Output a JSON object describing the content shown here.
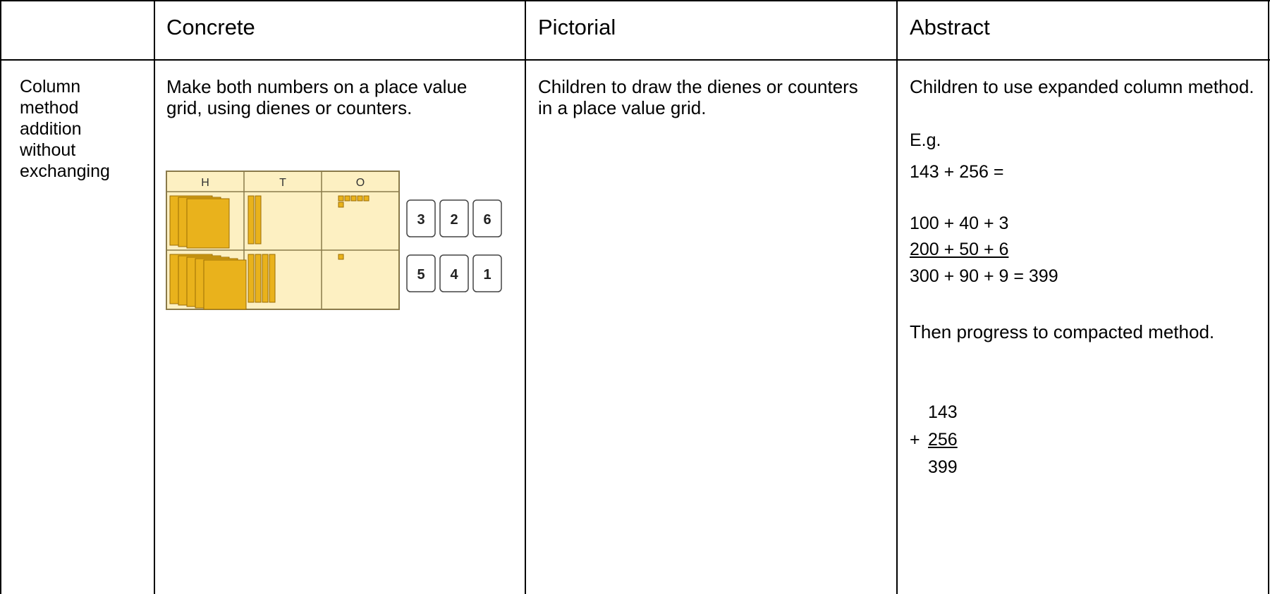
{
  "table": {
    "header": [
      "Concrete",
      "Pictorial",
      "Abstract"
    ],
    "row": {
      "label": "Column method addition without exchanging",
      "concrete": {
        "text": "Make both numbers on a place value grid, using dienes or counters.",
        "grid": {
          "headers": [
            "H",
            "T",
            "O"
          ],
          "cards": [
            [
              3,
              2,
              6
            ],
            [
              5,
              4,
              1
            ]
          ]
        }
      },
      "pictorial": "Children to draw the dienes or counters in a place value grid.",
      "abstract": {
        "intro": "Children to use expanded column method.",
        "eg": "E.g.",
        "sum": "143 + 256 =",
        "expanded": [
          "100 + 40 + 3",
          "200 + 50 + 6",
          "300 + 90 + 9 = 399"
        ],
        "progress": "Then progress to compacted method.",
        "compact": {
          "top": "143",
          "operator": "+",
          "addend": "256",
          "result": "399"
        }
      }
    }
  }
}
